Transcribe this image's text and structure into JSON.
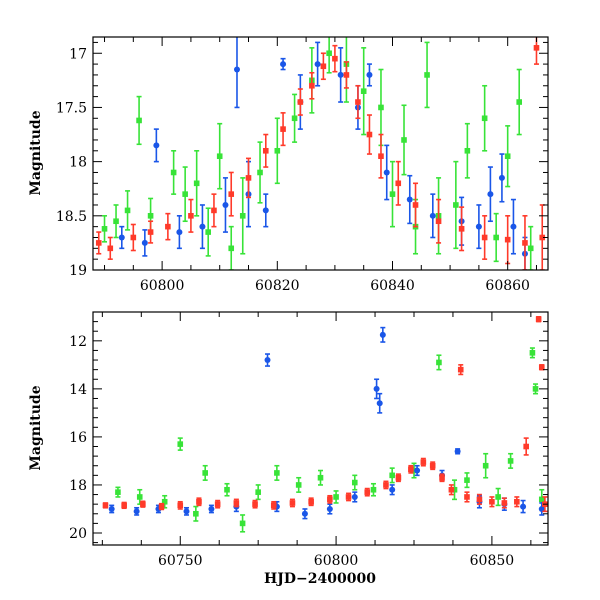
{
  "colors": {
    "blue": "#1a56e8",
    "green": "#38e338",
    "red": "#ff3a2a"
  },
  "chart_data": [
    {
      "type": "scatter",
      "xlabel": "",
      "ylabel": "Magnitude",
      "xlim": [
        60788,
        60867
      ],
      "ylim": [
        19,
        16.85
      ],
      "y_inverted": true,
      "xticks": [
        60800,
        60820,
        60840,
        60860
      ],
      "yticks": [
        17,
        17.5,
        18,
        18.5,
        19
      ],
      "ytick_labels": [
        "17",
        "17.5",
        "18",
        "18.5",
        "19"
      ],
      "series": [
        {
          "color": "green",
          "points": [
            {
              "x": 60790,
              "y": 18.62,
              "e": 0.12
            },
            {
              "x": 60792,
              "y": 18.55,
              "e": 0.15
            },
            {
              "x": 60794,
              "y": 18.45,
              "e": 0.18
            },
            {
              "x": 60796,
              "y": 17.62,
              "e": 0.22
            },
            {
              "x": 60798,
              "y": 18.5,
              "e": 0.16
            },
            {
              "x": 60802,
              "y": 18.1,
              "e": 0.2
            },
            {
              "x": 60804,
              "y": 18.3,
              "e": 0.25
            },
            {
              "x": 60806,
              "y": 18.2,
              "e": 0.3
            },
            {
              "x": 60808,
              "y": 18.65,
              "e": 0.22
            },
            {
              "x": 60810,
              "y": 17.95,
              "e": 0.3
            },
            {
              "x": 60812,
              "y": 18.8,
              "e": 0.2
            },
            {
              "x": 60814,
              "y": 18.5,
              "e": 0.35
            },
            {
              "x": 60817,
              "y": 18.1,
              "e": 0.28
            },
            {
              "x": 60820,
              "y": 17.9,
              "e": 0.3
            },
            {
              "x": 60823,
              "y": 17.6,
              "e": 0.22
            },
            {
              "x": 60826,
              "y": 17.25,
              "e": 0.3
            },
            {
              "x": 60829,
              "y": 17.0,
              "e": 0.18
            },
            {
              "x": 60832,
              "y": 17.1,
              "e": 0.35
            },
            {
              "x": 60835,
              "y": 17.35,
              "e": 0.4
            },
            {
              "x": 60838,
              "y": 17.5,
              "e": 0.35
            },
            {
              "x": 60840,
              "y": 18.3,
              "e": 0.3
            },
            {
              "x": 60842,
              "y": 17.8,
              "e": 0.32
            },
            {
              "x": 60844,
              "y": 18.6,
              "e": 0.25
            },
            {
              "x": 60846,
              "y": 17.2,
              "e": 0.3
            },
            {
              "x": 60848,
              "y": 18.5,
              "e": 0.35
            },
            {
              "x": 60851,
              "y": 18.4,
              "e": 0.4
            },
            {
              "x": 60853,
              "y": 17.9,
              "e": 0.25
            },
            {
              "x": 60856,
              "y": 17.6,
              "e": 0.3
            },
            {
              "x": 60858,
              "y": 18.7,
              "e": 0.22
            },
            {
              "x": 60860,
              "y": 17.95,
              "e": 0.28
            },
            {
              "x": 60862,
              "y": 17.45,
              "e": 0.3
            },
            {
              "x": 60864,
              "y": 18.8,
              "e": 0.2
            }
          ]
        },
        {
          "color": "blue",
          "points": [
            {
              "x": 60793,
              "y": 18.7,
              "e": 0.1
            },
            {
              "x": 60797,
              "y": 18.75,
              "e": 0.12
            },
            {
              "x": 60799,
              "y": 17.85,
              "e": 0.15
            },
            {
              "x": 60803,
              "y": 18.65,
              "e": 0.15
            },
            {
              "x": 60807,
              "y": 18.6,
              "e": 0.2
            },
            {
              "x": 60811,
              "y": 18.4,
              "e": 0.25
            },
            {
              "x": 60813,
              "y": 17.15,
              "e": 0.35
            },
            {
              "x": 60815,
              "y": 18.3,
              "e": 0.3
            },
            {
              "x": 60818,
              "y": 18.45,
              "e": 0.15
            },
            {
              "x": 60821,
              "y": 17.1,
              "e": 0.05
            },
            {
              "x": 60824,
              "y": 17.45,
              "e": 0.25
            },
            {
              "x": 60827,
              "y": 17.1,
              "e": 0.2
            },
            {
              "x": 60831,
              "y": 17.2,
              "e": 0.25
            },
            {
              "x": 60834,
              "y": 17.5,
              "e": 0.2
            },
            {
              "x": 60836,
              "y": 17.2,
              "e": 0.1
            },
            {
              "x": 60839,
              "y": 18.1,
              "e": 0.25
            },
            {
              "x": 60843,
              "y": 18.35,
              "e": 0.22
            },
            {
              "x": 60847,
              "y": 18.5,
              "e": 0.2
            },
            {
              "x": 60852,
              "y": 18.55,
              "e": 0.22
            },
            {
              "x": 60855,
              "y": 18.6,
              "e": 0.2
            },
            {
              "x": 60857,
              "y": 18.3,
              "e": 0.25
            },
            {
              "x": 60859,
              "y": 18.15,
              "e": 0.22
            },
            {
              "x": 60861,
              "y": 18.6,
              "e": 0.25
            },
            {
              "x": 60863,
              "y": 18.85,
              "e": 0.15
            }
          ]
        },
        {
          "color": "red",
          "points": [
            {
              "x": 60789,
              "y": 18.75,
              "e": 0.1
            },
            {
              "x": 60791,
              "y": 18.8,
              "e": 0.1
            },
            {
              "x": 60795,
              "y": 18.7,
              "e": 0.12
            },
            {
              "x": 60798,
              "y": 18.65,
              "e": 0.1
            },
            {
              "x": 60801,
              "y": 18.6,
              "e": 0.12
            },
            {
              "x": 60805,
              "y": 18.5,
              "e": 0.15
            },
            {
              "x": 60809,
              "y": 18.45,
              "e": 0.15
            },
            {
              "x": 60812,
              "y": 18.3,
              "e": 0.2
            },
            {
              "x": 60815,
              "y": 18.15,
              "e": 0.18
            },
            {
              "x": 60818,
              "y": 17.9,
              "e": 0.15
            },
            {
              "x": 60821,
              "y": 17.7,
              "e": 0.15
            },
            {
              "x": 60824,
              "y": 17.45,
              "e": 0.12
            },
            {
              "x": 60826,
              "y": 17.3,
              "e": 0.12
            },
            {
              "x": 60828,
              "y": 17.12,
              "e": 0.12
            },
            {
              "x": 60830,
              "y": 17.05,
              "e": 0.12
            },
            {
              "x": 60832,
              "y": 17.2,
              "e": 0.12
            },
            {
              "x": 60834,
              "y": 17.45,
              "e": 0.15
            },
            {
              "x": 60836,
              "y": 17.75,
              "e": 0.18
            },
            {
              "x": 60838,
              "y": 17.95,
              "e": 0.2
            },
            {
              "x": 60841,
              "y": 18.2,
              "e": 0.2
            },
            {
              "x": 60844,
              "y": 18.4,
              "e": 0.2
            },
            {
              "x": 60848,
              "y": 18.55,
              "e": 0.2
            },
            {
              "x": 60852,
              "y": 18.62,
              "e": 0.2
            },
            {
              "x": 60856,
              "y": 18.7,
              "e": 0.2
            },
            {
              "x": 60860,
              "y": 18.72,
              "e": 0.22
            },
            {
              "x": 60863,
              "y": 18.75,
              "e": 0.25
            },
            {
              "x": 60865,
              "y": 16.95,
              "e": 0.15
            },
            {
              "x": 60866,
              "y": 18.7,
              "e": 0.3
            }
          ]
        }
      ]
    },
    {
      "type": "scatter",
      "xlabel": "HJD−2400000",
      "ylabel": "Magnitude",
      "xlim": [
        60722,
        60868
      ],
      "ylim": [
        20.5,
        10.8
      ],
      "y_inverted": true,
      "xticks": [
        60750,
        60800,
        60850
      ],
      "yticks": [
        12,
        14,
        16,
        18,
        20
      ],
      "ytick_labels": [
        "12",
        "14",
        "16",
        "18",
        "20"
      ],
      "series": [
        {
          "color": "green",
          "points": [
            {
              "x": 60730,
              "y": 18.3,
              "e": 0.2
            },
            {
              "x": 60737,
              "y": 18.5,
              "e": 0.3
            },
            {
              "x": 60745,
              "y": 18.7,
              "e": 0.25
            },
            {
              "x": 60750,
              "y": 16.3,
              "e": 0.25
            },
            {
              "x": 60755,
              "y": 19.2,
              "e": 0.3
            },
            {
              "x": 60758,
              "y": 17.5,
              "e": 0.3
            },
            {
              "x": 60765,
              "y": 18.2,
              "e": 0.25
            },
            {
              "x": 60770,
              "y": 19.6,
              "e": 0.35
            },
            {
              "x": 60775,
              "y": 18.3,
              "e": 0.3
            },
            {
              "x": 60781,
              "y": 17.5,
              "e": 0.3
            },
            {
              "x": 60788,
              "y": 18.0,
              "e": 0.3
            },
            {
              "x": 60795,
              "y": 17.7,
              "e": 0.3
            },
            {
              "x": 60800,
              "y": 18.5,
              "e": 0.25
            },
            {
              "x": 60806,
              "y": 17.9,
              "e": 0.3
            },
            {
              "x": 60812,
              "y": 18.2,
              "e": 0.25
            },
            {
              "x": 60818,
              "y": 17.6,
              "e": 0.3
            },
            {
              "x": 60825,
              "y": 17.4,
              "e": 0.3
            },
            {
              "x": 60833,
              "y": 12.9,
              "e": 0.3
            },
            {
              "x": 60838,
              "y": 18.2,
              "e": 0.4
            },
            {
              "x": 60842,
              "y": 17.8,
              "e": 0.3
            },
            {
              "x": 60848,
              "y": 17.2,
              "e": 0.5
            },
            {
              "x": 60852,
              "y": 18.5,
              "e": 0.35
            },
            {
              "x": 60856,
              "y": 17.0,
              "e": 0.3
            },
            {
              "x": 60863,
              "y": 12.5,
              "e": 0.2
            },
            {
              "x": 60864,
              "y": 14.0,
              "e": 0.2
            },
            {
              "x": 60866,
              "y": 18.6,
              "e": 0.4
            }
          ]
        },
        {
          "color": "blue",
          "points": [
            {
              "x": 60728,
              "y": 19.0,
              "e": 0.15
            },
            {
              "x": 60736,
              "y": 19.1,
              "e": 0.15
            },
            {
              "x": 60743,
              "y": 19.0,
              "e": 0.15
            },
            {
              "x": 60752,
              "y": 19.1,
              "e": 0.15
            },
            {
              "x": 60760,
              "y": 19.0,
              "e": 0.15
            },
            {
              "x": 60768,
              "y": 18.9,
              "e": 0.2
            },
            {
              "x": 60778,
              "y": 12.8,
              "e": 0.25
            },
            {
              "x": 60781,
              "y": 18.9,
              "e": 0.2
            },
            {
              "x": 60790,
              "y": 19.2,
              "e": 0.2
            },
            {
              "x": 60798,
              "y": 19.0,
              "e": 0.2
            },
            {
              "x": 60806,
              "y": 18.5,
              "e": 0.2
            },
            {
              "x": 60813,
              "y": 14.0,
              "e": 0.4
            },
            {
              "x": 60814,
              "y": 14.6,
              "e": 0.4
            },
            {
              "x": 60815,
              "y": 11.75,
              "e": 0.3
            },
            {
              "x": 60818,
              "y": 18.2,
              "e": 0.2
            },
            {
              "x": 60826,
              "y": 17.4,
              "e": 0.2
            },
            {
              "x": 60834,
              "y": 17.6,
              "e": 0.2
            },
            {
              "x": 60839,
              "y": 16.6,
              "e": 0.1
            },
            {
              "x": 60846,
              "y": 18.7,
              "e": 0.25
            },
            {
              "x": 60854,
              "y": 18.8,
              "e": 0.25
            },
            {
              "x": 60860,
              "y": 18.9,
              "e": 0.25
            },
            {
              "x": 60866,
              "y": 19.0,
              "e": 0.25
            }
          ]
        },
        {
          "color": "red",
          "points": [
            {
              "x": 60726,
              "y": 18.85,
              "e": 0.1
            },
            {
              "x": 60732,
              "y": 18.85,
              "e": 0.12
            },
            {
              "x": 60738,
              "y": 18.8,
              "e": 0.12
            },
            {
              "x": 60744,
              "y": 18.9,
              "e": 0.12
            },
            {
              "x": 60750,
              "y": 18.85,
              "e": 0.15
            },
            {
              "x": 60756,
              "y": 18.7,
              "e": 0.15
            },
            {
              "x": 60762,
              "y": 18.8,
              "e": 0.15
            },
            {
              "x": 60768,
              "y": 18.75,
              "e": 0.15
            },
            {
              "x": 60774,
              "y": 18.8,
              "e": 0.15
            },
            {
              "x": 60780,
              "y": 18.85,
              "e": 0.15
            },
            {
              "x": 60786,
              "y": 18.75,
              "e": 0.15
            },
            {
              "x": 60792,
              "y": 18.7,
              "e": 0.15
            },
            {
              "x": 60798,
              "y": 18.6,
              "e": 0.15
            },
            {
              "x": 60804,
              "y": 18.5,
              "e": 0.15
            },
            {
              "x": 60810,
              "y": 18.3,
              "e": 0.15
            },
            {
              "x": 60816,
              "y": 18.0,
              "e": 0.15
            },
            {
              "x": 60820,
              "y": 17.7,
              "e": 0.15
            },
            {
              "x": 60824,
              "y": 17.35,
              "e": 0.15
            },
            {
              "x": 60828,
              "y": 17.05,
              "e": 0.15
            },
            {
              "x": 60831,
              "y": 17.2,
              "e": 0.15
            },
            {
              "x": 60834,
              "y": 17.7,
              "e": 0.15
            },
            {
              "x": 60837,
              "y": 18.2,
              "e": 0.2
            },
            {
              "x": 60840,
              "y": 13.2,
              "e": 0.2
            },
            {
              "x": 60842,
              "y": 18.5,
              "e": 0.2
            },
            {
              "x": 60846,
              "y": 18.6,
              "e": 0.2
            },
            {
              "x": 60850,
              "y": 18.7,
              "e": 0.2
            },
            {
              "x": 60854,
              "y": 18.75,
              "e": 0.2
            },
            {
              "x": 60858,
              "y": 18.7,
              "e": 0.2
            },
            {
              "x": 60861,
              "y": 16.4,
              "e": 0.35
            },
            {
              "x": 60865,
              "y": 11.1,
              "e": 0.1
            },
            {
              "x": 60866,
              "y": 13.1,
              "e": 0.1
            },
            {
              "x": 60867,
              "y": 18.8,
              "e": 0.3
            }
          ]
        }
      ]
    }
  ]
}
